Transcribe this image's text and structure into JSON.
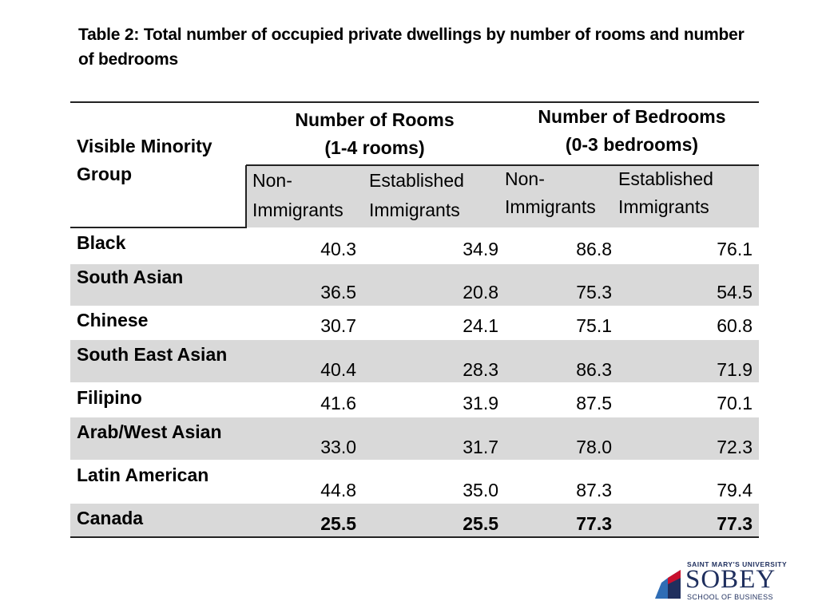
{
  "title": "Table 2: Total number of occupied private dwellings by number of rooms and number of bedrooms",
  "header": {
    "group_label_1": "Visible Minority",
    "group_label_2": "Group",
    "rooms_1": "Number of Rooms",
    "rooms_2": "(1-4 rooms)",
    "bedrooms_1": "Number of Bedrooms",
    "bedrooms_2": "(0-3 bedrooms)",
    "non_1": "Non-",
    "non_2": "Immigrants",
    "est_1": "Established",
    "est_2": "Immigrants"
  },
  "rows": [
    {
      "group": "Black",
      "v": [
        "40.3",
        "34.9",
        "86.8",
        "76.1"
      ]
    },
    {
      "group": "South Asian",
      "v": [
        "36.5",
        "20.8",
        "75.3",
        "54.5"
      ]
    },
    {
      "group": "Chinese",
      "v": [
        "30.7",
        "24.1",
        "75.1",
        "60.8"
      ]
    },
    {
      "group": "South East Asian",
      "v": [
        "40.4",
        "28.3",
        "86.3",
        "71.9"
      ]
    },
    {
      "group": "Filipino",
      "v": [
        "41.6",
        "31.9",
        "87.5",
        "70.1"
      ]
    },
    {
      "group": "Arab/West Asian",
      "v": [
        "33.0",
        "31.7",
        "78.0",
        "72.3"
      ]
    },
    {
      "group": "Latin American",
      "v": [
        "44.8",
        "35.0",
        "87.3",
        "79.4"
      ]
    },
    {
      "group": "Canada",
      "v": [
        "25.5",
        "25.5",
        "77.3",
        "77.3"
      ]
    }
  ],
  "logo": {
    "top": "SAINT MARY'S UNIVERSITY",
    "name": "SOBEY",
    "sub": "SCHOOL OF BUSINESS"
  },
  "colors": {
    "shade": "#d9d9d9",
    "brand_navy": "#1f2f5e",
    "brand_blue": "#2f6db5",
    "brand_red": "#c8102e"
  }
}
